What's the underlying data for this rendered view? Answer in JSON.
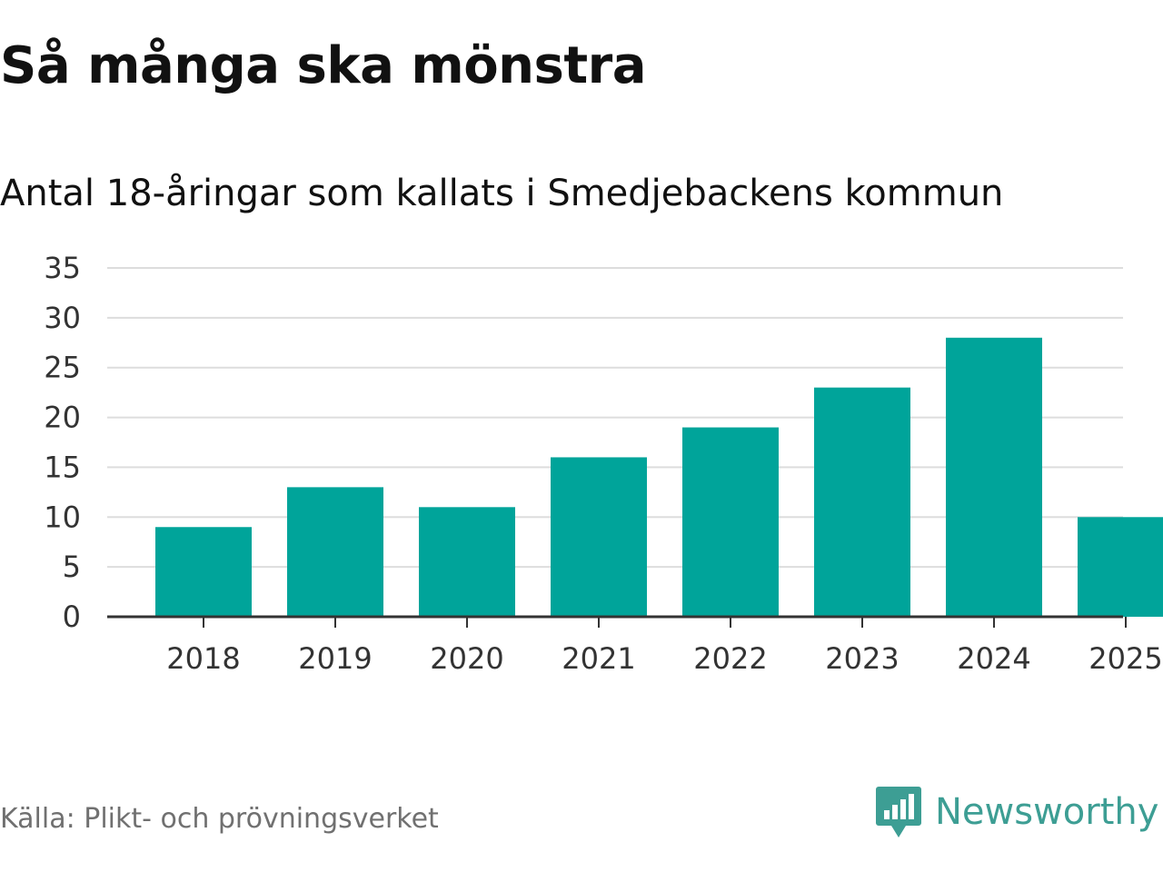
{
  "header": {
    "title": "Så många ska mönstra",
    "subtitle": "Antal 18-åringar som kallats i Smedjebackens kommun"
  },
  "footer": {
    "source": "Källa: Plikt- och prövningsverket",
    "brand": "Newsworthy",
    "brand_icon": "newsworthy-logo-icon"
  },
  "colors": {
    "bar": "#00a49a",
    "grid": "#dddddd",
    "axis": "#333333",
    "text": "#333333",
    "brand": "#3d9e94"
  },
  "chart_data": {
    "type": "bar",
    "title": "Så många ska mönstra",
    "subtitle": "Antal 18-åringar som kallats i Smedjebackens kommun",
    "xlabel": "",
    "ylabel": "",
    "categories": [
      "2018",
      "2019",
      "2020",
      "2021",
      "2022",
      "2023",
      "2024",
      "2025"
    ],
    "values": [
      9,
      13,
      11,
      16,
      19,
      23,
      28,
      10
    ],
    "ylim": [
      0,
      35
    ],
    "yticks": [
      0,
      5,
      10,
      15,
      20,
      25,
      30,
      35
    ],
    "grid": true,
    "legend": "none"
  }
}
